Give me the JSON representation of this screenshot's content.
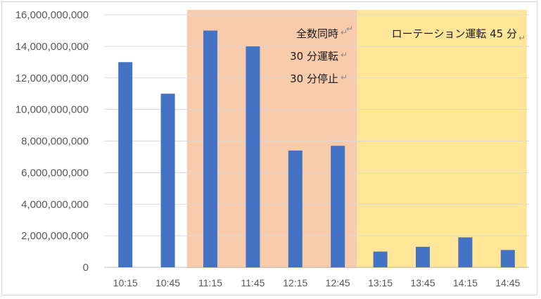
{
  "chart_data": {
    "type": "bar",
    "categories": [
      "10:15",
      "10:45",
      "11:15",
      "11:45",
      "12:15",
      "12:45",
      "13:15",
      "13:45",
      "14:15",
      "14:45"
    ],
    "values": [
      13000000000,
      11000000000,
      15000000000,
      14000000000,
      7400000000,
      7700000000,
      1000000000,
      1300000000,
      1900000000,
      1100000000
    ],
    "ylim": [
      0,
      16000000000
    ],
    "yticks": [
      0,
      2000000000,
      4000000000,
      6000000000,
      8000000000,
      10000000000,
      12000000000,
      14000000000,
      16000000000
    ],
    "ytick_labels": [
      "0",
      "2,000,000,000",
      "4,000,000,000",
      "6,000,000,000",
      "8,000,000,000",
      "10,000,000,000",
      "12,000,000,000",
      "14,000,000,000",
      "16,000,000,000"
    ],
    "grid": true,
    "bar_color": "#4472c4",
    "title": "",
    "xlabel": "",
    "ylabel": "",
    "regions": [
      {
        "from": "11:15",
        "to": "12:45",
        "color": "#f8cbad",
        "lines": [
          "全数同時",
          "30 分運転",
          "30 分停止"
        ]
      },
      {
        "from": "13:15",
        "to": "14:45",
        "color": "#ffe699",
        "lines": [
          "ローテーション運転 45 分"
        ]
      }
    ]
  }
}
